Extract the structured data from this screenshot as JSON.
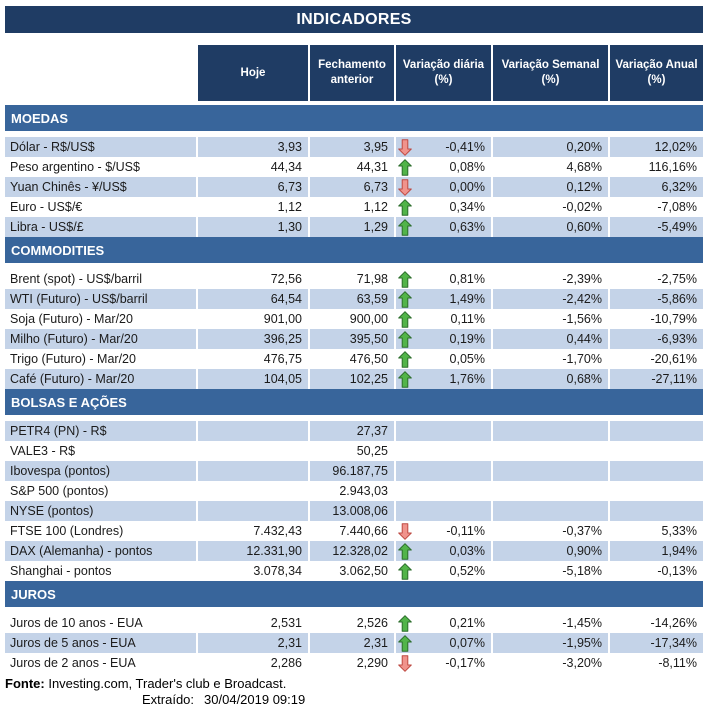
{
  "title": "INDICADORES",
  "columns": [
    "Hoje",
    "Fechamento anterior",
    "Variação diária (%)",
    "Variação Semanal (%)",
    "Variação Anual (%)"
  ],
  "colors": {
    "header_bg": "#1f3c64",
    "section_bg": "#38659b",
    "row_shade": "#c4d3e8",
    "up_arrow_fill": "#52b449",
    "up_arrow_border": "#2c6e2c",
    "down_arrow_fill": "#f0938c",
    "down_arrow_border": "#be4a42"
  },
  "icons": {
    "up": "trend-up-icon",
    "down": "trend-down-icon"
  },
  "sections": [
    {
      "label": "MOEDAS",
      "rows": [
        {
          "label": "Dólar - R$/US$",
          "hoje": "3,93",
          "fechamento": "3,95",
          "trend": "down",
          "diaria": "-0,41%",
          "semanal": "0,20%",
          "anual": "12,02%"
        },
        {
          "label": "Peso argentino - $/US$",
          "hoje": "44,34",
          "fechamento": "44,31",
          "trend": "up",
          "diaria": "0,08%",
          "semanal": "4,68%",
          "anual": "116,16%"
        },
        {
          "label": "Yuan Chinês - ¥/US$",
          "hoje": "6,73",
          "fechamento": "6,73",
          "trend": "down",
          "diaria": "0,00%",
          "semanal": "0,12%",
          "anual": "6,32%"
        },
        {
          "label": "Euro - US$/€",
          "hoje": "1,12",
          "fechamento": "1,12",
          "trend": "up",
          "diaria": "0,34%",
          "semanal": "-0,02%",
          "anual": "-7,08%"
        },
        {
          "label": "Libra - US$/£",
          "hoje": "1,30",
          "fechamento": "1,29",
          "trend": "up",
          "diaria": "0,63%",
          "semanal": "0,60%",
          "anual": "-5,49%"
        }
      ]
    },
    {
      "label": "COMMODITIES",
      "rows": [
        {
          "label": "Brent (spot) - US$/barril",
          "hoje": "72,56",
          "fechamento": "71,98",
          "trend": "up",
          "diaria": "0,81%",
          "semanal": "-2,39%",
          "anual": "-2,75%"
        },
        {
          "label": "WTI (Futuro) - US$/barril",
          "hoje": "64,54",
          "fechamento": "63,59",
          "trend": "up",
          "diaria": "1,49%",
          "semanal": "-2,42%",
          "anual": "-5,86%"
        },
        {
          "label": "Soja (Futuro) - Mar/20",
          "hoje": "901,00",
          "fechamento": "900,00",
          "trend": "up",
          "diaria": "0,11%",
          "semanal": "-1,56%",
          "anual": "-10,79%"
        },
        {
          "label": "Milho (Futuro) - Mar/20",
          "hoje": "396,25",
          "fechamento": "395,50",
          "trend": "up",
          "diaria": "0,19%",
          "semanal": "0,44%",
          "anual": "-6,93%"
        },
        {
          "label": "Trigo (Futuro) - Mar/20",
          "hoje": "476,75",
          "fechamento": "476,50",
          "trend": "up",
          "diaria": "0,05%",
          "semanal": "-1,70%",
          "anual": "-20,61%"
        },
        {
          "label": "Café (Futuro) - Mar/20",
          "hoje": "104,05",
          "fechamento": "102,25",
          "trend": "up",
          "diaria": "1,76%",
          "semanal": "0,68%",
          "anual": "-27,11%"
        }
      ]
    },
    {
      "label": "BOLSAS E AÇÕES",
      "rows": [
        {
          "label": "PETR4 (PN) - R$",
          "hoje": "",
          "fechamento": "27,37",
          "trend": null,
          "diaria": "",
          "semanal": "",
          "anual": ""
        },
        {
          "label": "VALE3 - R$",
          "hoje": "",
          "fechamento": "50,25",
          "trend": null,
          "diaria": "",
          "semanal": "",
          "anual": ""
        },
        {
          "label": "Ibovespa (pontos)",
          "hoje": "",
          "fechamento": "96.187,75",
          "trend": null,
          "diaria": "",
          "semanal": "",
          "anual": ""
        },
        {
          "label": "S&P 500 (pontos)",
          "hoje": "",
          "fechamento": "2.943,03",
          "trend": null,
          "diaria": "",
          "semanal": "",
          "anual": ""
        },
        {
          "label": "NYSE (pontos)",
          "hoje": "",
          "fechamento": "13.008,06",
          "trend": null,
          "diaria": "",
          "semanal": "",
          "anual": ""
        },
        {
          "label": "FTSE 100 (Londres)",
          "hoje": "7.432,43",
          "fechamento": "7.440,66",
          "trend": "down",
          "diaria": "-0,11%",
          "semanal": "-0,37%",
          "anual": "5,33%"
        },
        {
          "label": "DAX (Alemanha) - pontos",
          "hoje": "12.331,90",
          "fechamento": "12.328,02",
          "trend": "up",
          "diaria": "0,03%",
          "semanal": "0,90%",
          "anual": "1,94%"
        },
        {
          "label": "Shanghai - pontos",
          "hoje": "3.078,34",
          "fechamento": "3.062,50",
          "trend": "up",
          "diaria": "0,52%",
          "semanal": "-5,18%",
          "anual": "-0,13%"
        }
      ]
    },
    {
      "label": "JUROS",
      "rows": [
        {
          "label": "Juros de 10 anos - EUA",
          "hoje": "2,531",
          "fechamento": "2,526",
          "trend": "up",
          "diaria": "0,21%",
          "semanal": "-1,45%",
          "anual": "-14,26%"
        },
        {
          "label": "Juros de 5 anos - EUA",
          "hoje": "2,31",
          "fechamento": "2,31",
          "trend": "up",
          "diaria": "0,07%",
          "semanal": "-1,95%",
          "anual": "-17,34%"
        },
        {
          "label": "Juros de 2 anos - EUA",
          "hoje": "2,286",
          "fechamento": "2,290",
          "trend": "down",
          "diaria": "-0,17%",
          "semanal": "-3,20%",
          "anual": "-8,11%"
        }
      ]
    }
  ],
  "footer": {
    "source_label": "Fonte:",
    "source_text": "Investing.com, Trader's club e Broadcast.",
    "extracted_label": "Extraído:",
    "extracted_value": "30/04/2019 09:19"
  }
}
